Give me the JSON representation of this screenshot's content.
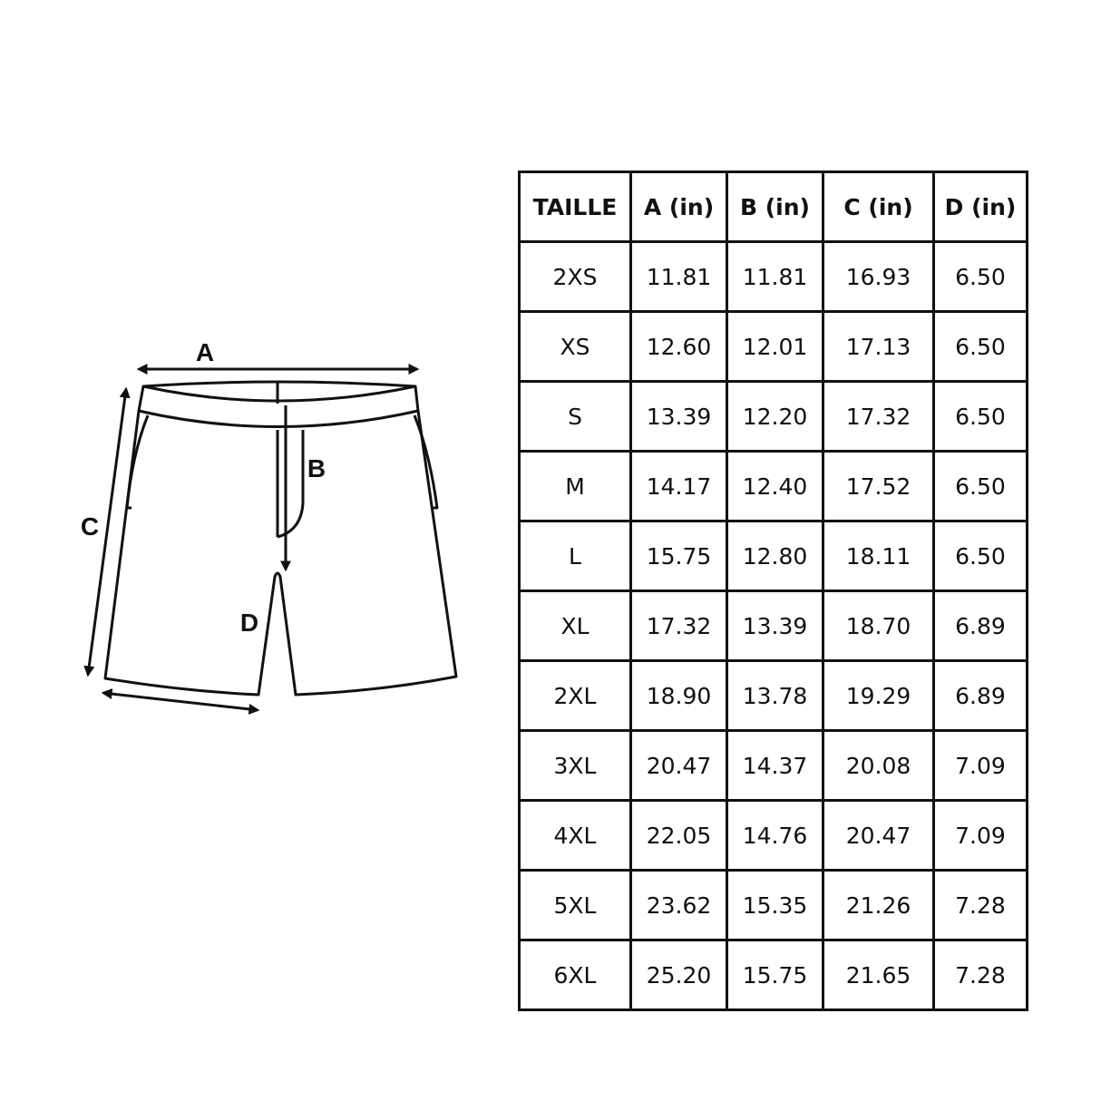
{
  "diagram": {
    "labels": {
      "a": "A",
      "b": "B",
      "c": "C",
      "d": "D"
    }
  },
  "table": {
    "headers": [
      "TAILLE",
      "A (in)",
      "B (in)",
      "C (in)",
      "D (in)"
    ],
    "rows": [
      [
        "2XS",
        "11.81",
        "11.81",
        "16.93",
        "6.50"
      ],
      [
        "XS",
        "12.60",
        "12.01",
        "17.13",
        "6.50"
      ],
      [
        "S",
        "13.39",
        "12.20",
        "17.32",
        "6.50"
      ],
      [
        "M",
        "14.17",
        "12.40",
        "17.52",
        "6.50"
      ],
      [
        "L",
        "15.75",
        "12.80",
        "18.11",
        "6.50"
      ],
      [
        "XL",
        "17.32",
        "13.39",
        "18.70",
        "6.89"
      ],
      [
        "2XL",
        "18.90",
        "13.78",
        "19.29",
        "6.89"
      ],
      [
        "3XL",
        "20.47",
        "14.37",
        "20.08",
        "7.09"
      ],
      [
        "4XL",
        "22.05",
        "14.76",
        "20.47",
        "7.09"
      ],
      [
        "5XL",
        "23.62",
        "15.35",
        "21.26",
        "7.28"
      ],
      [
        "6XL",
        "25.20",
        "15.75",
        "21.65",
        "7.28"
      ]
    ]
  }
}
